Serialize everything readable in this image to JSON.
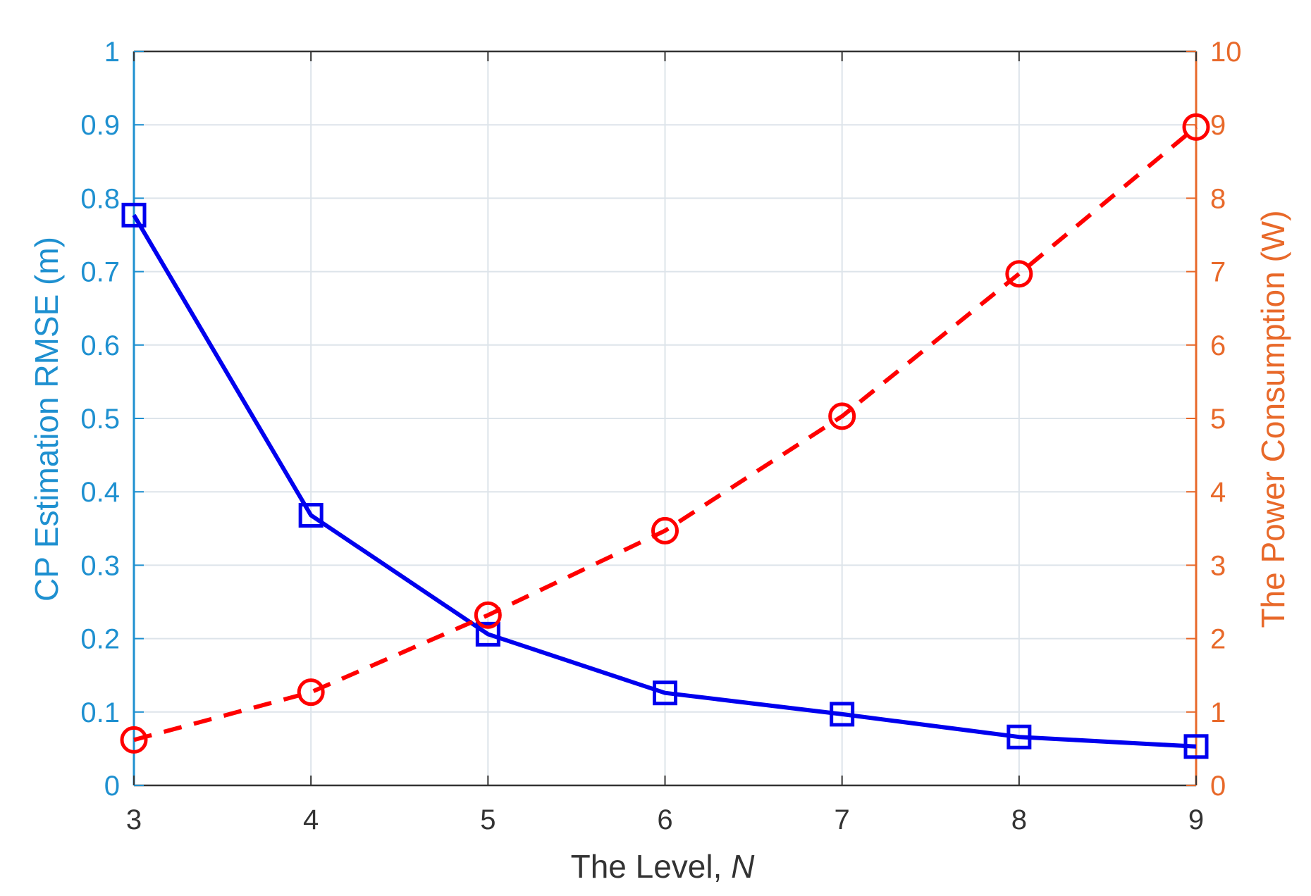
{
  "chart_data": {
    "type": "line",
    "xlabel": "The Level, ",
    "xlabel_italic": "N",
    "ylabel_left": "CP Estimation RMSE (m)",
    "ylabel_right": "The Power Consumption (W)",
    "xlim": [
      3,
      9
    ],
    "ylim_left": [
      0,
      1
    ],
    "ylim_right": [
      0,
      10
    ],
    "x_ticks": [
      "3",
      "4",
      "5",
      "6",
      "7",
      "8",
      "9"
    ],
    "y_left_ticks": [
      "0",
      "0.1",
      "0.2",
      "0.3",
      "0.4",
      "0.5",
      "0.6",
      "0.7",
      "0.8",
      "0.9",
      "1"
    ],
    "y_right_ticks": [
      "0",
      "1",
      "2",
      "3",
      "4",
      "5",
      "6",
      "7",
      "8",
      "9",
      "10"
    ],
    "grid": true,
    "x": [
      3,
      4,
      5,
      6,
      7,
      8,
      9
    ],
    "series": [
      {
        "axis": "left",
        "values": [
          0.777,
          0.368,
          0.206,
          0.126,
          0.097,
          0.066,
          0.053
        ],
        "color": "#0000ee",
        "line_style": "solid",
        "marker": "square"
      },
      {
        "axis": "right",
        "values": [
          0.62,
          1.27,
          2.32,
          3.47,
          5.03,
          6.97,
          8.97
        ],
        "color": "#ff0000",
        "line_style": "dashed",
        "marker": "circle"
      }
    ],
    "colors": {
      "left_axis": "#1e90d0",
      "right_axis": "#e8692a",
      "x_axis": "#333333",
      "grid": "#dde4ea"
    }
  }
}
